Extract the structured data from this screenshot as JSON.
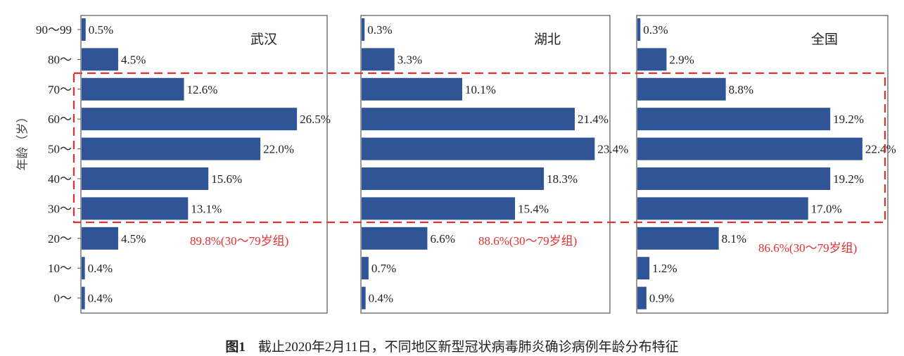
{
  "chart_data": [
    {
      "type": "bar",
      "orientation": "horizontal",
      "title": "武汉",
      "categories": [
        "90～99",
        "80～",
        "70～",
        "60～",
        "50～",
        "40～",
        "30～",
        "20～",
        "10～",
        "0～"
      ],
      "values": [
        0.5,
        4.5,
        12.6,
        26.5,
        22.0,
        15.6,
        13.1,
        4.5,
        0.4,
        0.4
      ],
      "value_labels": [
        "0.5%",
        "4.5%",
        "12.6%",
        "26.5%",
        "22.0%",
        "15.6%",
        "13.1%",
        "4.5%",
        "0.4%",
        "0.4%"
      ],
      "annotation": "89.8%(30～79岁组)",
      "xlim": [
        0,
        30.3
      ]
    },
    {
      "type": "bar",
      "orientation": "horizontal",
      "title": "湖北",
      "categories": [
        "90～99",
        "80～",
        "70～",
        "60～",
        "50～",
        "40～",
        "30～",
        "20～",
        "10～",
        "0～"
      ],
      "values": [
        0.3,
        3.3,
        10.1,
        21.4,
        23.4,
        18.3,
        15.4,
        6.6,
        0.7,
        0.4
      ],
      "value_labels": [
        "0.3%",
        "3.3%",
        "10.1%",
        "21.4%",
        "23.4%",
        "18.3%",
        "15.4%",
        "6.6%",
        "0.7%",
        "0.4%"
      ],
      "annotation": "88.6%(30～79岁组)",
      "xlim": [
        0,
        25
      ]
    },
    {
      "type": "bar",
      "orientation": "horizontal",
      "title": "全国",
      "categories": [
        "90～99",
        "80～",
        "70～",
        "60～",
        "50～",
        "40～",
        "30～",
        "20～",
        "10～",
        "0～"
      ],
      "values": [
        0.3,
        2.9,
        8.8,
        19.2,
        22.4,
        19.2,
        17.0,
        8.1,
        1.2,
        0.9
      ],
      "value_labels": [
        "0.3%",
        "2.9%",
        "8.8%",
        "19.2%",
        "22.4%",
        "19.2%",
        "17.0%",
        "8.1%",
        "1.2%",
        "0.9%"
      ],
      "annotation": "86.6%(30～79岁组)",
      "xlim": [
        0,
        25
      ]
    }
  ],
  "ylabel": "年龄（岁）",
  "caption": {
    "label": "图1",
    "text": "截止2020年2月11日，不同地区新型冠状病毒肺炎确诊病例年龄分布特征"
  },
  "colors": {
    "bar": "#2f5597",
    "highlight": "#e03030",
    "annotation": "#e03030"
  }
}
